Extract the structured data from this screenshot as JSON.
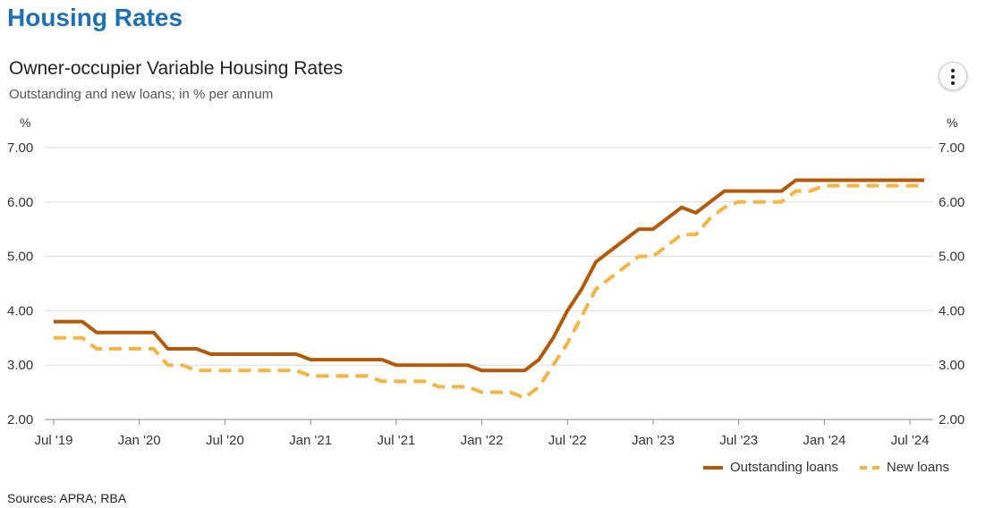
{
  "page": {
    "heading": "Housing Rates",
    "sources": "Sources: APRA; RBA"
  },
  "menu": {
    "icon": "more-vertical-icon"
  },
  "chart_data": {
    "type": "line",
    "title": "Owner-occupier Variable Housing Rates",
    "subtitle": "Outstanding and new loans; in % per annum",
    "ylabel_left": "%",
    "ylabel_right": "%",
    "ylim": [
      2.0,
      7.0
    ],
    "yticks": [
      "2.00",
      "3.00",
      "4.00",
      "5.00",
      "6.00",
      "7.00"
    ],
    "xlim": [
      "2019-07",
      "2024-08"
    ],
    "xticks": [
      {
        "date": "2019-07",
        "label": "Jul '19"
      },
      {
        "date": "2020-01",
        "label": "Jan '20"
      },
      {
        "date": "2020-07",
        "label": "Jul '20"
      },
      {
        "date": "2021-01",
        "label": "Jan '21"
      },
      {
        "date": "2021-07",
        "label": "Jul '21"
      },
      {
        "date": "2022-01",
        "label": "Jan '22"
      },
      {
        "date": "2022-07",
        "label": "Jul '22"
      },
      {
        "date": "2023-01",
        "label": "Jan '23"
      },
      {
        "date": "2023-07",
        "label": "Jul '23"
      },
      {
        "date": "2024-01",
        "label": "Jan '24"
      },
      {
        "date": "2024-07",
        "label": "Jul '24"
      }
    ],
    "grid": true,
    "legend_position": "bottom-right",
    "x": [
      "2019-07",
      "2019-08",
      "2019-09",
      "2019-10",
      "2019-11",
      "2019-12",
      "2020-01",
      "2020-02",
      "2020-03",
      "2020-04",
      "2020-05",
      "2020-06",
      "2020-07",
      "2020-08",
      "2020-09",
      "2020-10",
      "2020-11",
      "2020-12",
      "2021-01",
      "2021-02",
      "2021-03",
      "2021-04",
      "2021-05",
      "2021-06",
      "2021-07",
      "2021-08",
      "2021-09",
      "2021-10",
      "2021-11",
      "2021-12",
      "2022-01",
      "2022-02",
      "2022-03",
      "2022-04",
      "2022-05",
      "2022-06",
      "2022-07",
      "2022-08",
      "2022-09",
      "2022-10",
      "2022-11",
      "2022-12",
      "2023-01",
      "2023-02",
      "2023-03",
      "2023-04",
      "2023-05",
      "2023-06",
      "2023-07",
      "2023-08",
      "2023-09",
      "2023-10",
      "2023-11",
      "2023-12",
      "2024-01",
      "2024-02",
      "2024-03",
      "2024-04",
      "2024-05",
      "2024-06",
      "2024-07",
      "2024-08"
    ],
    "series": [
      {
        "name": "Outstanding loans",
        "color": "#b35a0a",
        "style": "solid",
        "values": [
          3.8,
          3.8,
          3.8,
          3.6,
          3.6,
          3.6,
          3.6,
          3.6,
          3.3,
          3.3,
          3.3,
          3.2,
          3.2,
          3.2,
          3.2,
          3.2,
          3.2,
          3.2,
          3.1,
          3.1,
          3.1,
          3.1,
          3.1,
          3.1,
          3.0,
          3.0,
          3.0,
          3.0,
          3.0,
          3.0,
          2.9,
          2.9,
          2.9,
          2.9,
          3.1,
          3.5,
          4.0,
          4.4,
          4.9,
          5.1,
          5.3,
          5.5,
          5.5,
          5.7,
          5.9,
          5.8,
          6.0,
          6.2,
          6.2,
          6.2,
          6.2,
          6.2,
          6.4,
          6.4,
          6.4,
          6.4,
          6.4,
          6.4,
          6.4,
          6.4,
          6.4,
          6.4
        ]
      },
      {
        "name": "New loans",
        "color": "#f5b443",
        "style": "dashed",
        "values": [
          3.5,
          3.5,
          3.5,
          3.3,
          3.3,
          3.3,
          3.3,
          3.3,
          3.0,
          3.0,
          2.9,
          2.9,
          2.9,
          2.9,
          2.9,
          2.9,
          2.9,
          2.9,
          2.8,
          2.8,
          2.8,
          2.8,
          2.8,
          2.7,
          2.7,
          2.7,
          2.7,
          2.6,
          2.6,
          2.6,
          2.5,
          2.5,
          2.5,
          2.4,
          2.6,
          3.0,
          3.4,
          3.9,
          4.4,
          4.6,
          4.8,
          5.0,
          5.0,
          5.2,
          5.4,
          5.4,
          5.7,
          5.9,
          6.0,
          6.0,
          6.0,
          6.0,
          6.2,
          6.2,
          6.3,
          6.3,
          6.3,
          6.3,
          6.3,
          6.3,
          6.3,
          6.3
        ]
      }
    ]
  }
}
